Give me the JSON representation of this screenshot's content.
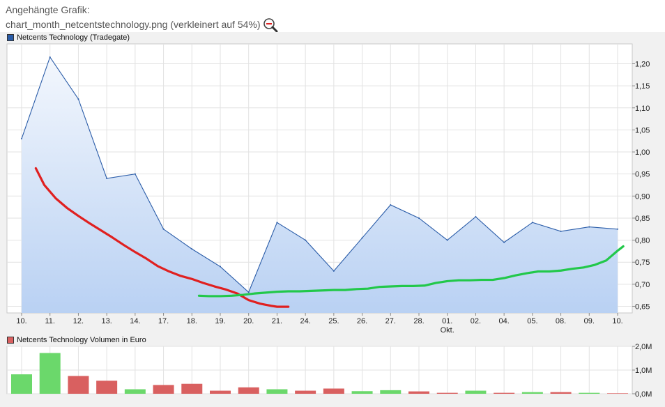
{
  "caption": {
    "line1": "Angehängte Grafik:",
    "line2": "chart_month_netcentstechnology.png (verkleinert auf 54%)",
    "zoom_icon": "zoom-out-magnifier-icon"
  },
  "chart_data": [
    {
      "type": "area",
      "title": "Netcents Technology (Tradegate)",
      "legend_color": "#2a5ca8",
      "line_color": "#2a5ca8",
      "fill_top": "#f3f7fd",
      "fill_bottom": "#b9d1f3",
      "categories": [
        "10.",
        "11.",
        "12.",
        "13.",
        "14.",
        "17.",
        "18.",
        "19.",
        "20.",
        "21.",
        "24.",
        "25.",
        "26.",
        "27.",
        "28.",
        "01.",
        "02.",
        "04.",
        "05.",
        "08.",
        "09.",
        "10."
      ],
      "month_label": {
        "text": "Okt.",
        "category_index": 15
      },
      "values": [
        1.03,
        1.215,
        1.12,
        0.94,
        0.95,
        0.825,
        0.78,
        0.74,
        0.682,
        0.84,
        0.8,
        0.73,
        0.805,
        0.88,
        0.85,
        0.8,
        0.853,
        0.795,
        0.84,
        0.82,
        0.83,
        0.825
      ],
      "ylim": [
        0.635,
        1.245
      ],
      "yticks": [
        0.65,
        0.7,
        0.75,
        0.8,
        0.85,
        0.9,
        0.95,
        1.0,
        1.05,
        1.1,
        1.15,
        1.2
      ],
      "ytick_labels": [
        "0,65",
        "0,70",
        "0,75",
        "0,80",
        "0,85",
        "0,90",
        "0,95",
        "1,00",
        "1,05",
        "1,10",
        "1,15",
        "1,20"
      ],
      "trend_lines": [
        {
          "name": "downtrend",
          "color": "#e02020",
          "x": [
            0.5,
            0.8,
            1.2,
            1.6,
            2.0,
            2.4,
            2.8,
            3.2,
            3.6,
            4.0,
            4.4,
            4.8,
            5.2,
            5.6,
            6.0,
            6.4,
            6.8,
            7.2,
            7.6,
            8.0,
            8.4,
            8.8,
            9.0,
            9.4
          ],
          "y": [
            0.963,
            0.925,
            0.895,
            0.873,
            0.855,
            0.838,
            0.822,
            0.806,
            0.789,
            0.773,
            0.758,
            0.741,
            0.729,
            0.719,
            0.712,
            0.703,
            0.695,
            0.688,
            0.679,
            0.664,
            0.656,
            0.651,
            0.649,
            0.649
          ]
        },
        {
          "name": "uptrend",
          "color": "#22c84a",
          "x": [
            6.25,
            6.6,
            7.0,
            7.4,
            7.8,
            8.2,
            8.6,
            9.0,
            9.4,
            9.8,
            10.2,
            10.6,
            11.0,
            11.4,
            11.8,
            12.2,
            12.6,
            13.0,
            13.4,
            13.8,
            14.2,
            14.6,
            15.0,
            15.4,
            15.8,
            16.2,
            16.6,
            17.0,
            17.4,
            17.8,
            18.2,
            18.6,
            19.0,
            19.4,
            19.8,
            20.2,
            20.6,
            21.0,
            21.2
          ],
          "y": [
            0.674,
            0.673,
            0.673,
            0.674,
            0.676,
            0.679,
            0.681,
            0.683,
            0.684,
            0.684,
            0.685,
            0.686,
            0.687,
            0.687,
            0.689,
            0.69,
            0.694,
            0.695,
            0.696,
            0.696,
            0.697,
            0.703,
            0.707,
            0.709,
            0.709,
            0.71,
            0.71,
            0.714,
            0.72,
            0.725,
            0.729,
            0.729,
            0.731,
            0.735,
            0.738,
            0.744,
            0.754,
            0.776,
            0.786
          ]
        }
      ]
    },
    {
      "type": "bar",
      "title": "Netcents Technology Volumen in Euro",
      "legend_color": "#d96060",
      "categories": [
        "10.",
        "11.",
        "12.",
        "13.",
        "14.",
        "17.",
        "18.",
        "19.",
        "20.",
        "21.",
        "24.",
        "25.",
        "26.",
        "27.",
        "28.",
        "01.",
        "02.",
        "04.",
        "05.",
        "08.",
        "09.",
        "10."
      ],
      "values_m": [
        0.82,
        1.72,
        0.75,
        0.55,
        0.19,
        0.37,
        0.42,
        0.13,
        0.27,
        0.19,
        0.13,
        0.22,
        0.11,
        0.15,
        0.1,
        0.04,
        0.13,
        0.04,
        0.07,
        0.07,
        0.04,
        0.02
      ],
      "colors": [
        "g",
        "g",
        "r",
        "r",
        "g",
        "r",
        "r",
        "r",
        "r",
        "g",
        "r",
        "r",
        "g",
        "g",
        "r",
        "r",
        "g",
        "r",
        "g",
        "r",
        "g",
        "r"
      ],
      "up_color": "#6bd86b",
      "down_color": "#d96060",
      "ylim": [
        0,
        2.0
      ],
      "yticks": [
        0,
        1,
        2
      ],
      "ytick_labels": [
        "0,0M",
        "1,0M",
        "2,0M"
      ]
    }
  ]
}
